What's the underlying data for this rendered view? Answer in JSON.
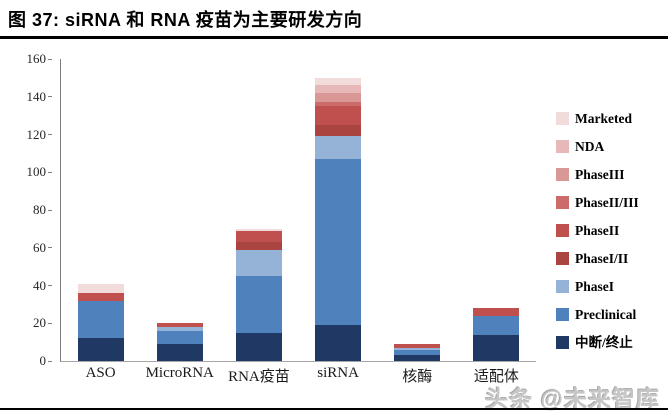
{
  "page": {
    "title": "图 37: siRNA 和 RNA 疫苗为主要研发方向",
    "watermark": "头条 @未来智库"
  },
  "chart_data": {
    "type": "bar",
    "stacked": true,
    "title": "图 37: siRNA 和 RNA 疫苗为主要研发方向",
    "categories": [
      "ASO",
      "MicroRNA",
      "RNA疫苗",
      "siRNA",
      "核酶",
      "适配体"
    ],
    "series": [
      {
        "name": "中断/终止",
        "color": "#1f3864",
        "values": [
          12,
          9,
          15,
          19,
          3,
          14
        ]
      },
      {
        "name": "Preclinical",
        "color": "#4f81bd",
        "values": [
          20,
          7,
          30,
          88,
          3,
          10
        ]
      },
      {
        "name": "PhaseI",
        "color": "#95b3d7",
        "values": [
          0,
          2,
          14,
          12,
          1,
          0
        ]
      },
      {
        "name": "PhaseI/II",
        "color": "#a94441",
        "values": [
          0,
          0,
          4,
          6,
          0,
          0
        ]
      },
      {
        "name": "PhaseII",
        "color": "#c0504d",
        "values": [
          4,
          2,
          6,
          10,
          2,
          4
        ]
      },
      {
        "name": "PhaseII/III",
        "color": "#cb6c6a",
        "values": [
          0,
          0,
          0,
          2,
          0,
          0
        ]
      },
      {
        "name": "PhaseIII",
        "color": "#d99795",
        "values": [
          0,
          0,
          0,
          5,
          0,
          0
        ]
      },
      {
        "name": "NDA",
        "color": "#e6b9b8",
        "values": [
          0,
          0,
          0,
          4,
          0,
          0
        ]
      },
      {
        "name": "Marketed",
        "color": "#f2dcdb",
        "values": [
          5,
          0,
          1,
          4,
          0,
          0
        ]
      }
    ],
    "totals": [
      41,
      20,
      70,
      150,
      9,
      28
    ],
    "legend_order_top_to_bottom": [
      "Marketed",
      "NDA",
      "PhaseIII",
      "PhaseII/III",
      "PhaseII",
      "PhaseI/II",
      "PhaseI",
      "Preclinical",
      "中断/终止"
    ],
    "legend_position": "right",
    "grid": false,
    "xlabel": "",
    "ylabel": "",
    "ylim": [
      0,
      160
    ],
    "yticks": [
      0,
      20,
      40,
      60,
      80,
      100,
      120,
      140,
      160
    ],
    "axis_colors": {
      "y_axis_line": "#7f7f7f",
      "x_axis_line": "#a6a6a6",
      "tick_text": "#262626"
    }
  }
}
